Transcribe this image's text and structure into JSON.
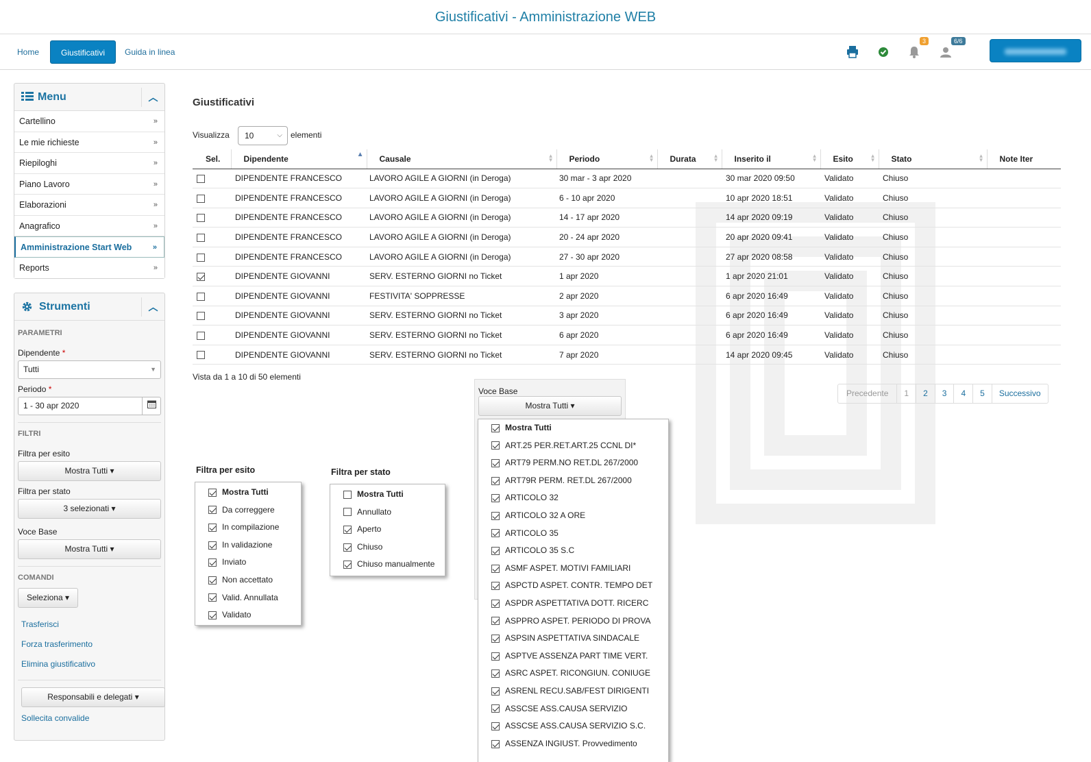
{
  "app_title": "Giustificativi - Amministrazione WEB",
  "nav": {
    "home": "Home",
    "giustificativi": "Giustificativi",
    "guida": "Guida in linea"
  },
  "badges": {
    "notifications": "3",
    "users": "6/6"
  },
  "icons": {
    "print": "print-icon",
    "check": "check-circle-icon",
    "bell": "bell-icon",
    "user": "user-icon",
    "menu": "list-icon",
    "tools": "gear-icon",
    "calendar": "calendar-icon"
  },
  "menu": {
    "title": "Menu",
    "items": [
      "Cartellino",
      "Le mie richieste",
      "Riepiloghi",
      "Piano Lavoro",
      "Elaborazioni",
      "Anagrafico",
      "Amministrazione Start Web",
      "Reports"
    ]
  },
  "tools": {
    "title": "Strumenti",
    "params_label": "PARAMETRI",
    "dipendente_label": "Dipendente",
    "dipendente_value": "Tutti",
    "periodo_label": "Periodo",
    "periodo_value": "1 - 30 apr 2020",
    "filters_label": "FILTRI",
    "esito_label": "Filtra per esito",
    "esito_value": "Mostra Tutti",
    "stato_label": "Filtra per stato",
    "stato_value": "3 selezionati",
    "voce_label": "Voce Base",
    "voce_value": "Mostra Tutti",
    "commands_label": "COMANDI",
    "seleziona": "Seleziona",
    "trasferisci": "Trasferisci",
    "forza": "Forza trasferimento",
    "elimina": "Elimina giustificativo",
    "responsabili": "Responsabili e delegati",
    "sollecita": "Sollecita convalide"
  },
  "main": {
    "title": "Giustificativi",
    "visualizza": "Visualizza",
    "page_size": "10",
    "elementi": "elementi",
    "info": "Vista da 1 a 10 di 50 elementi"
  },
  "table": {
    "headers": [
      "Sel.",
      "Dipendente",
      "Causale",
      "Periodo",
      "Durata",
      "Inserito il",
      "Esito",
      "Stato",
      "Note Iter"
    ],
    "rows": [
      {
        "checked": false,
        "dipendente": "DIPENDENTE FRANCESCO",
        "causale": "LAVORO AGILE A GIORNI (in Deroga)",
        "periodo": "30 mar - 3 apr 2020",
        "durata": "",
        "inserito": "30 mar 2020 09:50",
        "esito": "Validato",
        "stato": "Chiuso",
        "note": ""
      },
      {
        "checked": false,
        "dipendente": "DIPENDENTE FRANCESCO",
        "causale": "LAVORO AGILE A GIORNI (in Deroga)",
        "periodo": "6 - 10 apr 2020",
        "durata": "",
        "inserito": "10 apr 2020 18:51",
        "esito": "Validato",
        "stato": "Chiuso",
        "note": ""
      },
      {
        "checked": false,
        "dipendente": "DIPENDENTE FRANCESCO",
        "causale": "LAVORO AGILE A GIORNI (in Deroga)",
        "periodo": "14 - 17 apr 2020",
        "durata": "",
        "inserito": "14 apr 2020 09:19",
        "esito": "Validato",
        "stato": "Chiuso",
        "note": ""
      },
      {
        "checked": false,
        "dipendente": "DIPENDENTE FRANCESCO",
        "causale": "LAVORO AGILE A GIORNI (in Deroga)",
        "periodo": "20 - 24 apr 2020",
        "durata": "",
        "inserito": "20 apr 2020 09:41",
        "esito": "Validato",
        "stato": "Chiuso",
        "note": ""
      },
      {
        "checked": false,
        "dipendente": "DIPENDENTE FRANCESCO",
        "causale": "LAVORO AGILE A GIORNI (in Deroga)",
        "periodo": "27 - 30 apr 2020",
        "durata": "",
        "inserito": "27 apr 2020 08:58",
        "esito": "Validato",
        "stato": "Chiuso",
        "note": ""
      },
      {
        "checked": true,
        "dipendente": "DIPENDENTE GIOVANNI",
        "causale": "SERV. ESTERNO GIORNI no Ticket",
        "periodo": "1 apr 2020",
        "durata": "",
        "inserito": "1 apr 2020 21:01",
        "esito": "Validato",
        "stato": "Chiuso",
        "note": ""
      },
      {
        "checked": false,
        "dipendente": "DIPENDENTE GIOVANNI",
        "causale": "FESTIVITA' SOPPRESSE",
        "periodo": "2 apr 2020",
        "durata": "",
        "inserito": "6 apr 2020 16:49",
        "esito": "Validato",
        "stato": "Chiuso",
        "note": ""
      },
      {
        "checked": false,
        "dipendente": "DIPENDENTE GIOVANNI",
        "causale": "SERV. ESTERNO GIORNI no Ticket",
        "periodo": "3 apr 2020",
        "durata": "",
        "inserito": "6 apr 2020 16:49",
        "esito": "Validato",
        "stato": "Chiuso",
        "note": ""
      },
      {
        "checked": false,
        "dipendente": "DIPENDENTE GIOVANNI",
        "causale": "SERV. ESTERNO GIORNI no Ticket",
        "periodo": "6 apr 2020",
        "durata": "",
        "inserito": "6 apr 2020 16:49",
        "esito": "Validato",
        "stato": "Chiuso",
        "note": ""
      },
      {
        "checked": false,
        "dipendente": "DIPENDENTE GIOVANNI",
        "causale": "SERV. ESTERNO GIORNI no Ticket",
        "periodo": "7 apr 2020",
        "durata": "",
        "inserito": "14 apr 2020 09:45",
        "esito": "Validato",
        "stato": "Chiuso",
        "note": ""
      }
    ]
  },
  "pagination": {
    "prev": "Precedente",
    "pages": [
      "1",
      "2",
      "3",
      "4",
      "5"
    ],
    "next": "Successivo"
  },
  "popup_esito": {
    "label": "Filtra per esito",
    "items": [
      {
        "label": "Mostra Tutti",
        "checked": true,
        "bold": true
      },
      {
        "label": "Da correggere",
        "checked": true
      },
      {
        "label": "In compilazione",
        "checked": true
      },
      {
        "label": "In validazione",
        "checked": true
      },
      {
        "label": "Inviato",
        "checked": true
      },
      {
        "label": "Non accettato",
        "checked": true
      },
      {
        "label": "Valid. Annullata",
        "checked": true
      },
      {
        "label": "Validato",
        "checked": true
      }
    ]
  },
  "popup_stato": {
    "label": "Filtra per stato",
    "items": [
      {
        "label": "Mostra Tutti",
        "checked": false,
        "bold": true
      },
      {
        "label": "Annullato",
        "checked": false
      },
      {
        "label": "Aperto",
        "checked": true
      },
      {
        "label": "Chiuso",
        "checked": true
      },
      {
        "label": "Chiuso manualmente",
        "checked": true
      }
    ]
  },
  "popup_voce": {
    "label": "Voce Base",
    "button": "Mostra Tutti",
    "items": [
      {
        "label": "Mostra Tutti",
        "checked": true,
        "bold": true
      },
      {
        "label": "ART.25 PER.RET.ART.25 CCNL DI*",
        "checked": true
      },
      {
        "label": "ART79 PERM.NO RET.DL 267/2000",
        "checked": true
      },
      {
        "label": "ART79R PERM. RET.DL 267/2000",
        "checked": true
      },
      {
        "label": "ARTICOLO 32",
        "checked": true
      },
      {
        "label": "ARTICOLO 32 A ORE",
        "checked": true
      },
      {
        "label": "ARTICOLO 35",
        "checked": true
      },
      {
        "label": "ARTICOLO 35 S.C",
        "checked": true
      },
      {
        "label": "ASMF ASPET. MOTIVI FAMILIARI",
        "checked": true
      },
      {
        "label": "ASPCTD ASPET. CONTR. TEMPO DET",
        "checked": true
      },
      {
        "label": "ASPDR ASPETTATIVA DOTT. RICERC",
        "checked": true
      },
      {
        "label": "ASPPRO ASPET. PERIODO DI PROVA",
        "checked": true
      },
      {
        "label": "ASPSIN ASPETTATIVA SINDACALE",
        "checked": true
      },
      {
        "label": "ASPTVE ASSENZA PART TIME VERT.",
        "checked": true
      },
      {
        "label": "ASRC ASPET. RICONGIUN. CONIUGE",
        "checked": true
      },
      {
        "label": "ASRENL RECU.SAB/FEST DIRIGENTI",
        "checked": true
      },
      {
        "label": "ASSCSE ASS.CAUSA SERVIZIO",
        "checked": true
      },
      {
        "label": "ASSCSE ASS.CAUSA SERVIZIO S.C.",
        "checked": true
      },
      {
        "label": "ASSENZA INGIUST. Provvedimento",
        "checked": true
      }
    ]
  }
}
